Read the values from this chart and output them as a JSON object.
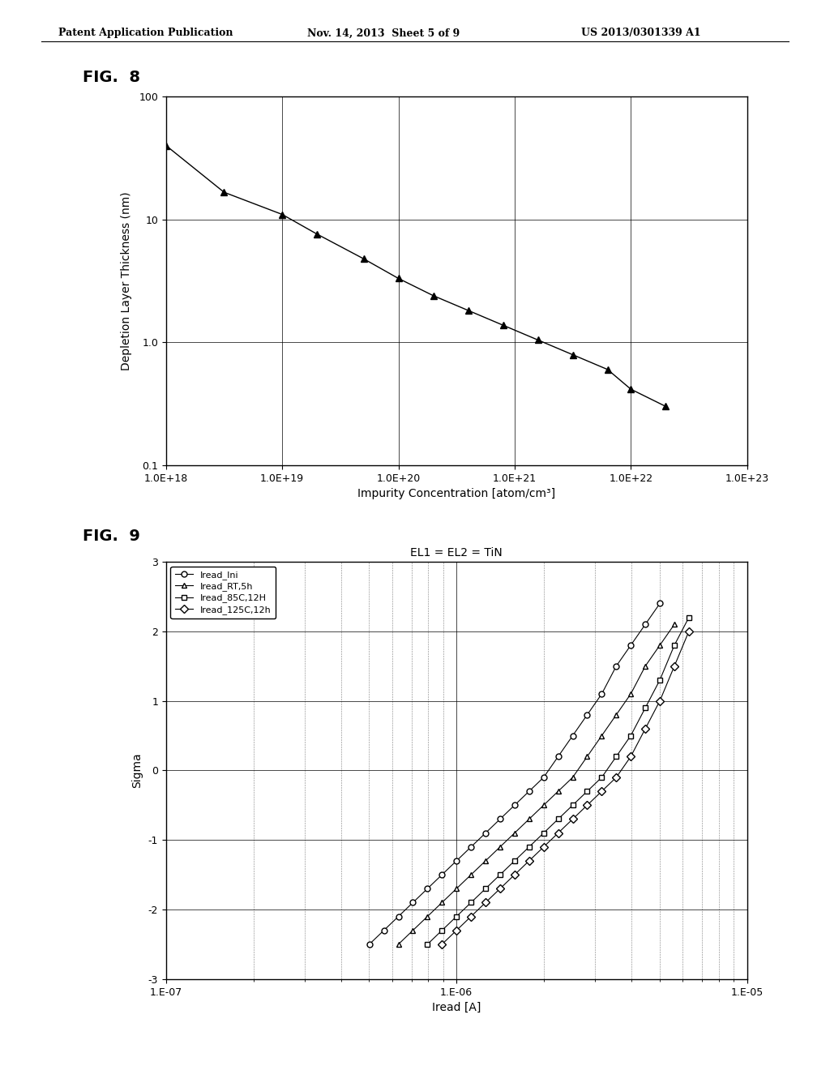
{
  "header_left": "Patent Application Publication",
  "header_mid": "Nov. 14, 2013  Sheet 5 of 9",
  "header_right": "US 2013/0301339 A1",
  "fig8_label": "FIG.  8",
  "fig9_label": "FIG.  9",
  "fig8": {
    "xlabel": "Impurity Concentration [atom/cm³]",
    "ylabel": "Depletion Layer Thickness (nm)",
    "xtick_labels": [
      "1.0E+18",
      "1.0E+19",
      "1.0E+20",
      "1.0E+21",
      "1.0E+22",
      "1.0E+23"
    ],
    "ytick_labels": [
      "0.1",
      "1.0",
      "10",
      "100"
    ],
    "data_x_log": [
      18.0,
      18.5,
      19.0,
      19.3,
      19.7,
      20.0,
      20.3,
      20.6,
      20.9,
      21.2,
      21.5,
      21.8,
      22.0,
      22.3
    ],
    "data_y_log": [
      1.6,
      1.22,
      1.04,
      0.88,
      0.68,
      0.52,
      0.38,
      0.26,
      0.14,
      0.02,
      -0.1,
      -0.22,
      -0.38,
      -0.52
    ]
  },
  "fig9": {
    "title": "EL1 = EL2 = TiN",
    "xlabel": "Iread [A]",
    "ylabel": "Sigma",
    "ylim": [
      -3,
      3
    ],
    "yticks": [
      -3,
      -2,
      -1,
      0,
      1,
      2,
      3
    ],
    "xtick_labels": [
      "1.E-07",
      "1.E-06",
      "1.E-05"
    ],
    "series": [
      {
        "label": "Iread_Ini",
        "marker": "o",
        "x_log": [
          -6.3,
          -6.25,
          -6.2,
          -6.15,
          -6.1,
          -6.05,
          -6.0,
          -5.95,
          -5.9,
          -5.85,
          -5.8,
          -5.75,
          -5.7,
          -5.65,
          -5.6,
          -5.55,
          -5.5,
          -5.45,
          -5.4,
          -5.35,
          -5.3
        ],
        "y": [
          -2.5,
          -2.3,
          -2.1,
          -1.9,
          -1.7,
          -1.5,
          -1.3,
          -1.1,
          -0.9,
          -0.7,
          -0.5,
          -0.3,
          -0.1,
          0.2,
          0.5,
          0.8,
          1.1,
          1.5,
          1.8,
          2.1,
          2.4
        ]
      },
      {
        "label": "Iread_RT,5h",
        "marker": "^",
        "x_log": [
          -6.2,
          -6.15,
          -6.1,
          -6.05,
          -6.0,
          -5.95,
          -5.9,
          -5.85,
          -5.8,
          -5.75,
          -5.7,
          -5.65,
          -5.6,
          -5.55,
          -5.5,
          -5.45,
          -5.4,
          -5.35,
          -5.3,
          -5.25
        ],
        "y": [
          -2.5,
          -2.3,
          -2.1,
          -1.9,
          -1.7,
          -1.5,
          -1.3,
          -1.1,
          -0.9,
          -0.7,
          -0.5,
          -0.3,
          -0.1,
          0.2,
          0.5,
          0.8,
          1.1,
          1.5,
          1.8,
          2.1
        ]
      },
      {
        "label": "Iread_85C,12H",
        "marker": "s",
        "x_log": [
          -6.1,
          -6.05,
          -6.0,
          -5.95,
          -5.9,
          -5.85,
          -5.8,
          -5.75,
          -5.7,
          -5.65,
          -5.6,
          -5.55,
          -5.5,
          -5.45,
          -5.4,
          -5.35,
          -5.3,
          -5.25,
          -5.2
        ],
        "y": [
          -2.5,
          -2.3,
          -2.1,
          -1.9,
          -1.7,
          -1.5,
          -1.3,
          -1.1,
          -0.9,
          -0.7,
          -0.5,
          -0.3,
          -0.1,
          0.2,
          0.5,
          0.9,
          1.3,
          1.8,
          2.2
        ]
      },
      {
        "label": "Iread_125C,12h",
        "marker": "D",
        "x_log": [
          -6.05,
          -6.0,
          -5.95,
          -5.9,
          -5.85,
          -5.8,
          -5.75,
          -5.7,
          -5.65,
          -5.6,
          -5.55,
          -5.5,
          -5.45,
          -5.4,
          -5.35,
          -5.3,
          -5.25,
          -5.2
        ],
        "y": [
          -2.5,
          -2.3,
          -2.1,
          -1.9,
          -1.7,
          -1.5,
          -1.3,
          -1.1,
          -0.9,
          -0.7,
          -0.5,
          -0.3,
          -0.1,
          0.2,
          0.6,
          1.0,
          1.5,
          2.0
        ]
      }
    ]
  },
  "background_color": "#ffffff",
  "text_color": "#000000"
}
